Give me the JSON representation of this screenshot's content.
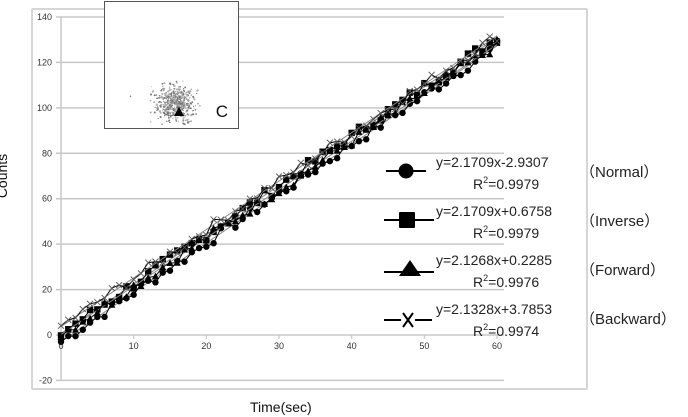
{
  "chart_data": {
    "type": "scatter",
    "title": "",
    "xlabel": "Time(sec)",
    "ylabel": "Counts",
    "xlim": [
      0,
      60
    ],
    "ylim": [
      -20,
      140
    ],
    "x_ticks": [
      0,
      10,
      20,
      30,
      40,
      50,
      60
    ],
    "y_ticks": [
      -20,
      0,
      20,
      40,
      60,
      80,
      100,
      120,
      140
    ],
    "grid": {
      "horizontal": true,
      "vertical": false
    },
    "legend_position": "right-middle (inside plot)",
    "series": [
      {
        "name": "Normal",
        "marker": "circle",
        "equation": "y=2.1709x-2.9307",
        "r2": "0.9979",
        "slope": 2.1709,
        "intercept": -2.9307,
        "x": [
          0,
          5,
          10,
          15,
          20,
          25,
          30,
          35,
          40,
          45,
          50,
          55,
          60
        ],
        "values": [
          -3,
          8,
          19,
          30,
          41,
          51,
          62,
          73,
          84,
          95,
          106,
          117,
          128
        ]
      },
      {
        "name": "Inverse",
        "marker": "square",
        "equation": "y=2.1709x+0.6758",
        "r2": "0.9979",
        "slope": 2.1709,
        "intercept": 0.6758,
        "x": [
          0,
          5,
          10,
          15,
          20,
          25,
          30,
          35,
          40,
          45,
          50,
          55,
          60
        ],
        "values": [
          1,
          12,
          22,
          33,
          44,
          55,
          66,
          77,
          88,
          98,
          109,
          120,
          131
        ]
      },
      {
        "name": "Forward",
        "marker": "triangle",
        "equation": "y=2.1268x+0.2285",
        "r2": "0.9976",
        "slope": 2.1268,
        "intercept": 0.2285,
        "x": [
          0,
          5,
          10,
          15,
          20,
          25,
          30,
          35,
          40,
          45,
          50,
          55,
          60
        ],
        "values": [
          0,
          11,
          21,
          32,
          43,
          53,
          64,
          75,
          85,
          96,
          107,
          117,
          128
        ]
      },
      {
        "name": "Backward",
        "marker": "x",
        "equation": "y=2.1328x+3.7853",
        "r2": "0.9974",
        "slope": 2.1328,
        "intercept": 3.7853,
        "x": [
          0,
          5,
          10,
          15,
          20,
          25,
          30,
          35,
          40,
          45,
          50,
          55,
          60
        ],
        "values": [
          4,
          14,
          25,
          36,
          46,
          57,
          68,
          78,
          89,
          100,
          110,
          121,
          132
        ]
      }
    ],
    "annotations": [
      "Inset image panel labeled 'C' showing a scatter cloud of gray dots with a black triangle marker"
    ]
  },
  "axes": {
    "xlabel": "Time(sec)",
    "ylabel": "Counts",
    "x_ticks": [
      "0",
      "10",
      "20",
      "30",
      "40",
      "50",
      "60"
    ],
    "y_ticks": [
      "-20",
      "0",
      "20",
      "40",
      "60",
      "80",
      "100",
      "120",
      "140"
    ]
  },
  "inset": {
    "label": "C"
  },
  "legend": [
    {
      "equation": "y=2.1709x-2.9307",
      "r2_prefix": "R",
      "r2_value": "=0.9979",
      "name": "（Normal）",
      "marker": "circle-icon"
    },
    {
      "equation": "y=2.1709x+0.6758",
      "r2_prefix": "R",
      "r2_value": "=0.9979",
      "name": "（Inverse）",
      "marker": "square-icon"
    },
    {
      "equation": "y=2.1268x+0.2285",
      "r2_prefix": "R",
      "r2_value": "=0.9976",
      "name": "（Forward）",
      "marker": "triangle-icon"
    },
    {
      "equation": "y=2.1328x+3.7853",
      "r2_prefix": "R",
      "r2_value": "=0.9974",
      "name": "（Backward）",
      "marker": "x-icon"
    }
  ],
  "colors": {
    "grid": "#c8c8c8",
    "frame": "#d6d6d6",
    "data": "#000000",
    "trend": "#888888"
  }
}
